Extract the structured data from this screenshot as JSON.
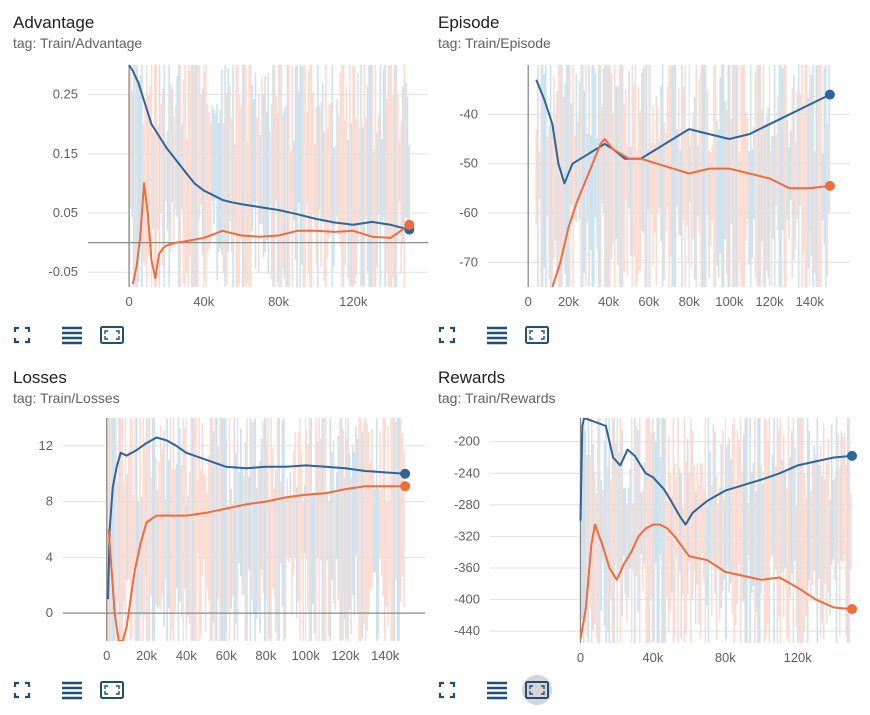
{
  "colors": {
    "blue": "#2e6497",
    "orange": "#f26b3a",
    "blue_faint": "#c6ddec",
    "orange_faint": "#fbd7cc",
    "toolbar_icon": "#1f4e79"
  },
  "toolbar": {
    "fullscreen_icon": "fullscreen-icon",
    "data_table_icon": "data-table-icon",
    "fit_domain_icon": "fit-domain-icon",
    "active_card": "rewards"
  },
  "chart_data": [
    {
      "id": "advantage",
      "type": "line",
      "title": "Advantage",
      "subtitle": "tag: Train/Advantage",
      "xlim": [
        -22000,
        160000
      ],
      "ylim": [
        -0.075,
        0.3
      ],
      "xticks": [
        0,
        40000,
        80000,
        120000
      ],
      "xtick_labels": [
        "0",
        "40k",
        "80k",
        "120k"
      ],
      "yticks": [
        0.25,
        0.15,
        0.05,
        -0.05
      ],
      "ytick_labels": [
        "0.25",
        "0.15",
        "0.05",
        "-0.05"
      ],
      "grid": true,
      "series": [
        {
          "color": "blue",
          "x": [
            0,
            2000,
            5000,
            8000,
            12000,
            16000,
            20000,
            25000,
            30000,
            35000,
            40000,
            45000,
            50000,
            55000,
            60000,
            70000,
            80000,
            90000,
            100000,
            110000,
            120000,
            130000,
            140000,
            150000
          ],
          "y": [
            0.3,
            0.29,
            0.27,
            0.24,
            0.2,
            0.18,
            0.16,
            0.14,
            0.12,
            0.1,
            0.088,
            0.08,
            0.072,
            0.068,
            0.065,
            0.06,
            0.055,
            0.048,
            0.04,
            0.034,
            0.03,
            0.035,
            0.03,
            0.022
          ]
        },
        {
          "color": "orange",
          "x": [
            2000,
            4000,
            6000,
            8000,
            10000,
            12000,
            14000,
            16000,
            18000,
            20000,
            25000,
            30000,
            40000,
            50000,
            60000,
            70000,
            80000,
            90000,
            100000,
            110000,
            120000,
            130000,
            140000,
            150000
          ],
          "y": [
            -0.07,
            -0.04,
            0.01,
            0.1,
            0.05,
            -0.03,
            -0.06,
            -0.02,
            -0.01,
            -0.005,
            0.0,
            0.002,
            0.008,
            0.02,
            0.012,
            0.01,
            0.012,
            0.02,
            0.02,
            0.018,
            0.02,
            0.01,
            0.008,
            0.03
          ]
        }
      ]
    },
    {
      "id": "episode",
      "type": "line",
      "title": "Episode",
      "subtitle": "tag: Train/Episode",
      "xlim": [
        -20000,
        160000
      ],
      "ylim": [
        -75,
        -30
      ],
      "xticks": [
        0,
        20000,
        40000,
        60000,
        80000,
        100000,
        120000,
        140000
      ],
      "xtick_labels": [
        "0",
        "20k",
        "40k",
        "60k",
        "80k",
        "100k",
        "120k",
        "140k"
      ],
      "yticks": [
        -40,
        -50,
        -60,
        -70
      ],
      "ytick_labels": [
        "-40",
        "-50",
        "-60",
        "-70"
      ],
      "grid": true,
      "series": [
        {
          "color": "blue",
          "x": [
            4000,
            8000,
            12000,
            15000,
            18000,
            22000,
            30000,
            38000,
            42000,
            48000,
            56000,
            64000,
            72000,
            80000,
            90000,
            100000,
            110000,
            120000,
            130000,
            140000,
            150000
          ],
          "y": [
            -33,
            -37,
            -42,
            -50,
            -54,
            -50,
            -48,
            -46,
            -47,
            -49,
            -49,
            -47,
            -45,
            -43,
            -44,
            -45,
            -44,
            -42,
            -40,
            -38,
            -36
          ]
        },
        {
          "color": "orange",
          "x": [
            12000,
            16000,
            20000,
            24000,
            28000,
            32000,
            36000,
            38000,
            42000,
            50000,
            56000,
            64000,
            72000,
            80000,
            90000,
            100000,
            110000,
            120000,
            130000,
            140000,
            150000
          ],
          "y": [
            -75,
            -70,
            -63,
            -58,
            -54,
            -50,
            -46,
            -45,
            -47,
            -49,
            -49,
            -50,
            -51,
            -52,
            -51,
            -51,
            -52,
            -53,
            -55,
            -55,
            -54.5
          ]
        }
      ]
    },
    {
      "id": "losses",
      "type": "line",
      "title": "Losses",
      "subtitle": "tag: Train/Losses",
      "xlim": [
        -22000,
        160000
      ],
      "ylim": [
        -2,
        14
      ],
      "xticks": [
        0,
        20000,
        40000,
        60000,
        80000,
        100000,
        120000,
        140000
      ],
      "xtick_labels": [
        "0",
        "20k",
        "40k",
        "60k",
        "80k",
        "100k",
        "120k",
        "140k"
      ],
      "yticks": [
        12,
        8,
        4,
        0
      ],
      "ytick_labels": [
        "12",
        "8",
        "4",
        "0"
      ],
      "grid": true,
      "series": [
        {
          "color": "blue",
          "x": [
            600,
            1500,
            3000,
            5000,
            7000,
            10000,
            15000,
            20000,
            25000,
            30000,
            35000,
            40000,
            50000,
            60000,
            70000,
            80000,
            90000,
            100000,
            110000,
            120000,
            130000,
            140000,
            150000
          ],
          "y": [
            1,
            6,
            9,
            10.5,
            11.5,
            11.3,
            11.7,
            12.2,
            12.6,
            12.4,
            12,
            11.5,
            11,
            10.5,
            10.4,
            10.5,
            10.5,
            10.6,
            10.5,
            10.4,
            10.2,
            10.1,
            10
          ]
        },
        {
          "color": "orange",
          "x": [
            1000,
            2000,
            4000,
            6000,
            8000,
            10000,
            12000,
            14000,
            17000,
            20000,
            25000,
            30000,
            40000,
            50000,
            60000,
            70000,
            80000,
            90000,
            100000,
            110000,
            120000,
            130000,
            140000,
            150000
          ],
          "y": [
            6,
            4,
            0,
            -2,
            -2,
            -1,
            1,
            3,
            5,
            6.5,
            7,
            7,
            7,
            7.2,
            7.5,
            7.8,
            8,
            8.3,
            8.5,
            8.6,
            8.9,
            9.1,
            9.1,
            9.1
          ]
        }
      ]
    },
    {
      "id": "rewards",
      "type": "line",
      "title": "Rewards",
      "subtitle": "tag: Train/Rewards",
      "xlim": [
        -50000,
        150000
      ],
      "ylim": [
        -455,
        -170
      ],
      "xticks": [
        0,
        40000,
        80000,
        120000
      ],
      "xtick_labels": [
        "0",
        "40k",
        "80k",
        "120k"
      ],
      "yticks": [
        -200,
        -240,
        -280,
        -320,
        -360,
        -400,
        -440
      ],
      "ytick_labels": [
        "-200",
        "-240",
        "-280",
        "-320",
        "-360",
        "-400",
        "-440"
      ],
      "grid": true,
      "series": [
        {
          "color": "blue",
          "x": [
            0,
            1000,
            2000,
            8000,
            14000,
            18000,
            22000,
            26000,
            30000,
            36000,
            40000,
            46000,
            50000,
            55000,
            58000,
            62000,
            70000,
            80000,
            90000,
            100000,
            110000,
            120000,
            130000,
            140000,
            150000
          ],
          "y": [
            -300,
            -180,
            -170,
            -175,
            -180,
            -220,
            -230,
            -210,
            -218,
            -240,
            -245,
            -260,
            -275,
            -295,
            -305,
            -290,
            -275,
            -262,
            -255,
            -248,
            -240,
            -230,
            -225,
            -220,
            -218
          ]
        },
        {
          "color": "orange",
          "x": [
            0,
            3000,
            6000,
            8000,
            12000,
            16000,
            20000,
            24000,
            28000,
            32000,
            36000,
            40000,
            44000,
            48000,
            52000,
            60000,
            70000,
            80000,
            90000,
            100000,
            110000,
            120000,
            130000,
            140000,
            150000
          ],
          "y": [
            -450,
            -410,
            -330,
            -305,
            -330,
            -360,
            -375,
            -355,
            -340,
            -320,
            -310,
            -305,
            -305,
            -310,
            -320,
            -345,
            -350,
            -365,
            -370,
            -375,
            -372,
            -385,
            -400,
            -410,
            -412
          ]
        }
      ]
    }
  ]
}
